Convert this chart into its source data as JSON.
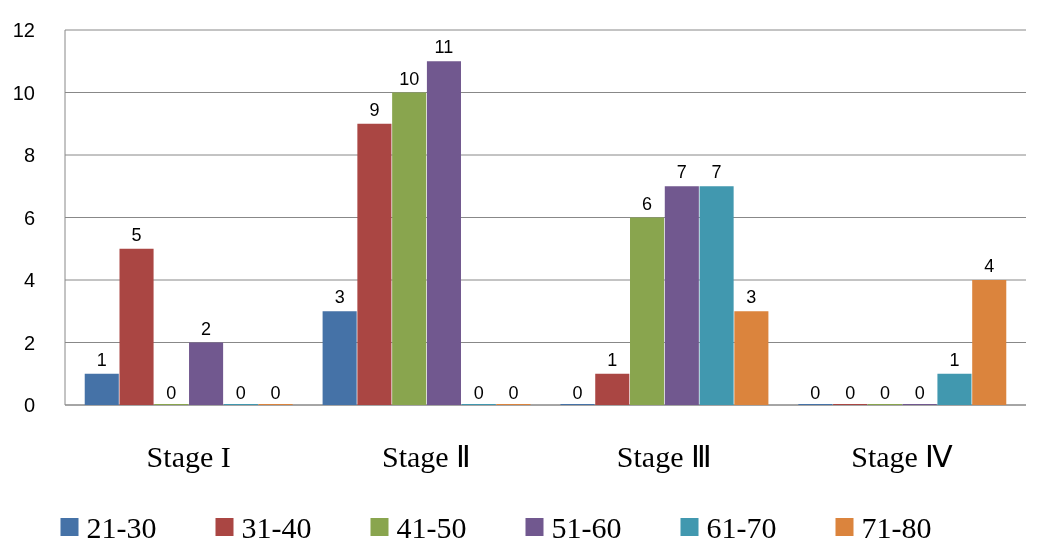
{
  "chart_data": {
    "type": "bar",
    "categories": [
      "Stage I",
      "Stage Ⅱ",
      "Stage Ⅲ",
      "Stage Ⅳ"
    ],
    "series": [
      {
        "name": "21-30",
        "color": "#4572a7",
        "values": [
          1,
          3,
          0,
          0
        ]
      },
      {
        "name": "31-40",
        "color": "#aa4643",
        "values": [
          5,
          9,
          1,
          0
        ]
      },
      {
        "name": "41-50",
        "color": "#89a54e",
        "values": [
          0,
          10,
          6,
          0
        ]
      },
      {
        "name": "51-60",
        "color": "#71588f",
        "values": [
          2,
          11,
          7,
          0
        ]
      },
      {
        "name": "61-70",
        "color": "#4198af",
        "values": [
          0,
          0,
          7,
          1
        ]
      },
      {
        "name": "71-80",
        "color": "#db843d",
        "values": [
          0,
          0,
          3,
          4
        ]
      }
    ],
    "ylim": [
      0,
      12
    ],
    "yticks": [
      0,
      2,
      4,
      6,
      8,
      10,
      12
    ],
    "grid": "y",
    "legend": "bottom",
    "data_labels": true
  }
}
